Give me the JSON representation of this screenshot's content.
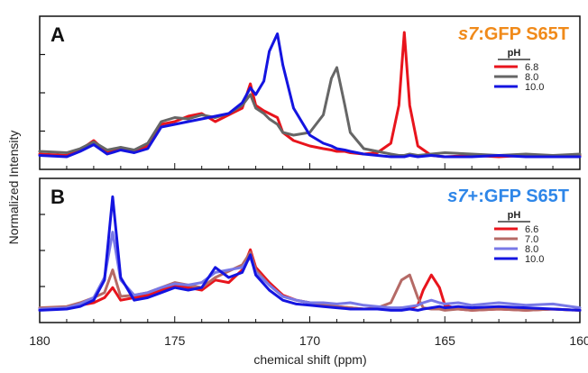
{
  "figure": {
    "ylabel": "Normalized Intensity",
    "xlabel": "chemical shift (ppm)",
    "x_ticks": [
      "180",
      "175",
      "170",
      "165",
      "160"
    ]
  },
  "chart_data": [
    {
      "type": "line",
      "panel_label": "A",
      "title": "s7:GFP S65T",
      "title_italic_part": "s7",
      "title_rest": ":GFP S65T",
      "title_color": "#F08A1A",
      "legend_title": "pH",
      "legend_placement": "right",
      "xlabel": "chemical shift (ppm)",
      "ylabel": "Normalized Intensity",
      "xlim": [
        180,
        160
      ],
      "x_reversed": true,
      "ylim": [
        0,
        1
      ],
      "x": [
        180,
        179,
        178.5,
        178,
        177.5,
        177,
        176.5,
        176,
        175.5,
        175,
        174.5,
        174,
        173.5,
        173,
        172.5,
        172.2,
        172,
        171.7,
        171.5,
        171.2,
        171,
        170.6,
        170,
        169.5,
        169.2,
        169,
        168.7,
        168.5,
        168,
        167.5,
        167,
        166.7,
        166.5,
        166.3,
        166,
        165.5,
        165,
        164,
        163,
        162,
        161,
        160
      ],
      "series": [
        {
          "name": "6.8",
          "color": "#E8141C",
          "values": [
            0.06,
            0.05,
            0.09,
            0.16,
            0.07,
            0.1,
            0.08,
            0.12,
            0.28,
            0.3,
            0.34,
            0.36,
            0.3,
            0.35,
            0.4,
            0.58,
            0.42,
            0.38,
            0.36,
            0.33,
            0.22,
            0.16,
            0.12,
            0.1,
            0.09,
            0.08,
            0.08,
            0.07,
            0.06,
            0.07,
            0.14,
            0.42,
            0.96,
            0.42,
            0.12,
            0.05,
            0.04,
            0.05,
            0.04,
            0.05,
            0.04,
            0.05
          ]
        },
        {
          "name": "8.0",
          "color": "#666666",
          "values": [
            0.08,
            0.07,
            0.1,
            0.15,
            0.09,
            0.11,
            0.09,
            0.14,
            0.3,
            0.33,
            0.32,
            0.35,
            0.33,
            0.36,
            0.42,
            0.5,
            0.4,
            0.36,
            0.32,
            0.28,
            0.22,
            0.2,
            0.22,
            0.35,
            0.62,
            0.7,
            0.42,
            0.22,
            0.1,
            0.08,
            0.06,
            0.05,
            0.05,
            0.06,
            0.05,
            0.06,
            0.07,
            0.06,
            0.05,
            0.06,
            0.05,
            0.06
          ]
        },
        {
          "name": "10.0",
          "color": "#1414E0",
          "values": [
            0.05,
            0.04,
            0.08,
            0.13,
            0.06,
            0.09,
            0.07,
            0.1,
            0.26,
            0.28,
            0.3,
            0.32,
            0.34,
            0.36,
            0.44,
            0.55,
            0.5,
            0.6,
            0.82,
            0.95,
            0.72,
            0.4,
            0.2,
            0.14,
            0.12,
            0.1,
            0.09,
            0.08,
            0.06,
            0.05,
            0.04,
            0.04,
            0.04,
            0.05,
            0.04,
            0.05,
            0.04,
            0.04,
            0.05,
            0.04,
            0.04,
            0.04
          ]
        }
      ]
    },
    {
      "type": "line",
      "panel_label": "B",
      "title": "s7+:GFP S65T",
      "title_italic_part": "s7",
      "title_rest": "+:GFP S65T",
      "title_color": "#2E86E8",
      "legend_title": "pH",
      "legend_placement": "right",
      "xlabel": "chemical shift (ppm)",
      "ylabel": "Normalized Intensity",
      "xlim": [
        180,
        160
      ],
      "x_reversed": true,
      "ylim": [
        0,
        1
      ],
      "x": [
        180,
        179,
        178.5,
        178,
        177.6,
        177.3,
        177,
        176.5,
        176,
        175.5,
        175,
        174.5,
        174,
        173.5,
        173,
        172.5,
        172.2,
        172,
        171.5,
        171,
        170.5,
        170,
        169.5,
        169,
        168.5,
        168,
        167.5,
        167,
        166.6,
        166.3,
        166,
        165.8,
        165.5,
        165.2,
        165,
        164.5,
        164,
        163,
        162,
        161,
        160
      ],
      "series": [
        {
          "name": "6.6",
          "color": "#E8141C",
          "values": [
            0.05,
            0.06,
            0.08,
            0.1,
            0.14,
            0.22,
            0.12,
            0.14,
            0.16,
            0.2,
            0.24,
            0.22,
            0.2,
            0.28,
            0.26,
            0.36,
            0.52,
            0.38,
            0.26,
            0.16,
            0.12,
            0.1,
            0.08,
            0.07,
            0.06,
            0.05,
            0.05,
            0.05,
            0.06,
            0.05,
            0.08,
            0.2,
            0.32,
            0.22,
            0.08,
            0.05,
            0.04,
            0.05,
            0.04,
            0.05,
            0.04
          ]
        },
        {
          "name": "7.0",
          "color": "#B56A66",
          "values": [
            0.06,
            0.07,
            0.1,
            0.14,
            0.18,
            0.36,
            0.15,
            0.16,
            0.18,
            0.22,
            0.26,
            0.24,
            0.22,
            0.3,
            0.35,
            0.4,
            0.5,
            0.36,
            0.24,
            0.15,
            0.12,
            0.1,
            0.08,
            0.07,
            0.06,
            0.05,
            0.06,
            0.1,
            0.28,
            0.32,
            0.14,
            0.06,
            0.05,
            0.05,
            0.04,
            0.05,
            0.04,
            0.05,
            0.04,
            0.05,
            0.04
          ]
        },
        {
          "name": "8.0",
          "color": "#7878E6",
          "values": [
            0.05,
            0.06,
            0.09,
            0.14,
            0.3,
            0.66,
            0.28,
            0.16,
            0.18,
            0.22,
            0.25,
            0.24,
            0.26,
            0.34,
            0.36,
            0.38,
            0.46,
            0.34,
            0.24,
            0.15,
            0.12,
            0.1,
            0.1,
            0.09,
            0.1,
            0.08,
            0.07,
            0.06,
            0.06,
            0.07,
            0.08,
            0.1,
            0.12,
            0.1,
            0.09,
            0.1,
            0.08,
            0.1,
            0.08,
            0.09,
            0.06
          ]
        },
        {
          "name": "10.0",
          "color": "#1414E0",
          "values": [
            0.04,
            0.05,
            0.07,
            0.12,
            0.28,
            0.94,
            0.3,
            0.12,
            0.14,
            0.18,
            0.22,
            0.2,
            0.22,
            0.38,
            0.3,
            0.34,
            0.48,
            0.32,
            0.2,
            0.12,
            0.09,
            0.08,
            0.07,
            0.06,
            0.05,
            0.05,
            0.05,
            0.04,
            0.04,
            0.05,
            0.04,
            0.05,
            0.06,
            0.07,
            0.06,
            0.07,
            0.06,
            0.07,
            0.06,
            0.05,
            0.04
          ]
        }
      ]
    }
  ]
}
